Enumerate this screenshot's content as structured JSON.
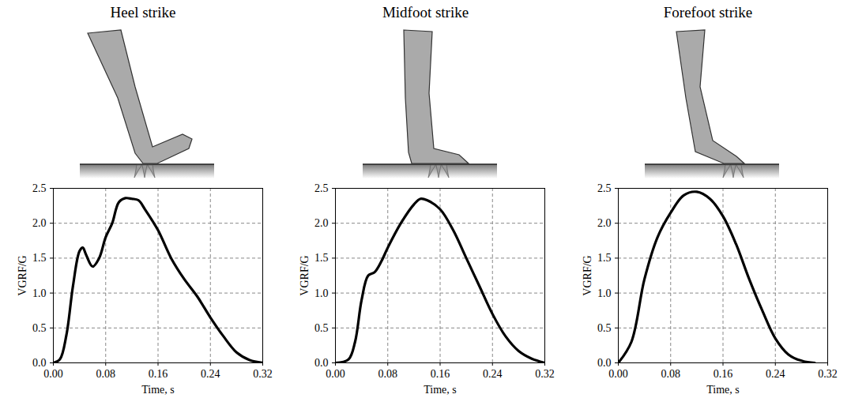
{
  "chart_data": [
    {
      "type": "line",
      "title": "Heel strike",
      "x_label": "Time, s",
      "y_label": "VGRF/G",
      "color": "#000000",
      "grid": true,
      "x": [
        0,
        0.01,
        0.02,
        0.03,
        0.04,
        0.045,
        0.05,
        0.06,
        0.07,
        0.08,
        0.09,
        0.1,
        0.11,
        0.12,
        0.13,
        0.14,
        0.16,
        0.18,
        0.2,
        0.22,
        0.24,
        0.26,
        0.28,
        0.3,
        0.32
      ],
      "values": [
        0,
        0.05,
        0.4,
        1.1,
        1.6,
        1.65,
        1.55,
        1.38,
        1.5,
        1.8,
        2.0,
        2.3,
        2.36,
        2.35,
        2.33,
        2.2,
        1.9,
        1.5,
        1.2,
        0.95,
        0.65,
        0.38,
        0.15,
        0.04,
        0
      ],
      "xlim": [
        0,
        0.32
      ],
      "xticks": [
        {
          "value": 0,
          "label": "0.00"
        },
        {
          "value": 0.08,
          "label": "0.08"
        },
        {
          "value": 0.16,
          "label": "0.16"
        },
        {
          "value": 0.24,
          "label": "0.24"
        },
        {
          "value": 0.32,
          "label": "0.32"
        }
      ],
      "ylim": [
        0,
        2.5
      ],
      "yticks": [
        {
          "value": 0,
          "label": "0.0"
        },
        {
          "value": 0.5,
          "label": "0.5"
        },
        {
          "value": 1,
          "label": "1.0"
        },
        {
          "value": 1.5,
          "label": "1.5"
        },
        {
          "value": 2,
          "label": "2.0"
        },
        {
          "value": 2.5,
          "label": "2.5"
        }
      ]
    },
    {
      "type": "line",
      "title": "Midfoot strike",
      "x_label": "Time, s",
      "y_label": "VGRF/G",
      "color": "#000000",
      "grid": true,
      "x": [
        0,
        0.02,
        0.03,
        0.04,
        0.05,
        0.06,
        0.07,
        0.08,
        0.1,
        0.12,
        0.13,
        0.14,
        0.16,
        0.18,
        0.2,
        0.22,
        0.24,
        0.26,
        0.28,
        0.3,
        0.32
      ],
      "values": [
        0,
        0.05,
        0.3,
        0.9,
        1.25,
        1.3,
        1.45,
        1.65,
        2.0,
        2.27,
        2.35,
        2.33,
        2.2,
        1.9,
        1.5,
        1.1,
        0.7,
        0.38,
        0.17,
        0.06,
        0
      ],
      "xlim": [
        0,
        0.32
      ],
      "xticks": [
        {
          "value": 0,
          "label": "0.00"
        },
        {
          "value": 0.08,
          "label": "0.08"
        },
        {
          "value": 0.16,
          "label": "0.16"
        },
        {
          "value": 0.24,
          "label": "0.24"
        },
        {
          "value": 0.32,
          "label": "0.32"
        }
      ],
      "ylim": [
        0,
        2.5
      ],
      "yticks": [
        {
          "value": 0,
          "label": "0.0"
        },
        {
          "value": 0.5,
          "label": "0.5"
        },
        {
          "value": 1,
          "label": "1.0"
        },
        {
          "value": 1.5,
          "label": "1.5"
        },
        {
          "value": 2,
          "label": "2.0"
        },
        {
          "value": 2.5,
          "label": "2.5"
        }
      ]
    },
    {
      "type": "line",
      "title": "Forefoot strike",
      "x_label": "Time, s",
      "y_label": "VGRF/G",
      "color": "#000000",
      "grid": true,
      "x": [
        0,
        0.02,
        0.04,
        0.06,
        0.08,
        0.1,
        0.12,
        0.14,
        0.16,
        0.18,
        0.2,
        0.22,
        0.24,
        0.26,
        0.28,
        0.3
      ],
      "values": [
        0,
        0.3,
        1.2,
        1.8,
        2.15,
        2.4,
        2.45,
        2.35,
        2.1,
        1.7,
        1.2,
        0.75,
        0.35,
        0.12,
        0.03,
        0
      ],
      "xlim": [
        0,
        0.32
      ],
      "xticks": [
        {
          "value": 0,
          "label": "0.00"
        },
        {
          "value": 0.08,
          "label": "0.08"
        },
        {
          "value": 0.16,
          "label": "0.16"
        },
        {
          "value": 0.24,
          "label": "0.24"
        },
        {
          "value": 0.32,
          "label": "0.32"
        }
      ],
      "ylim": [
        0,
        2.5
      ],
      "yticks": [
        {
          "value": 0,
          "label": "0.0"
        },
        {
          "value": 0.5,
          "label": "0.5"
        },
        {
          "value": 1,
          "label": "1.0"
        },
        {
          "value": 1.5,
          "label": "1.5"
        },
        {
          "value": 2,
          "label": "2.0"
        },
        {
          "value": 2.5,
          "label": "2.5"
        }
      ]
    }
  ]
}
